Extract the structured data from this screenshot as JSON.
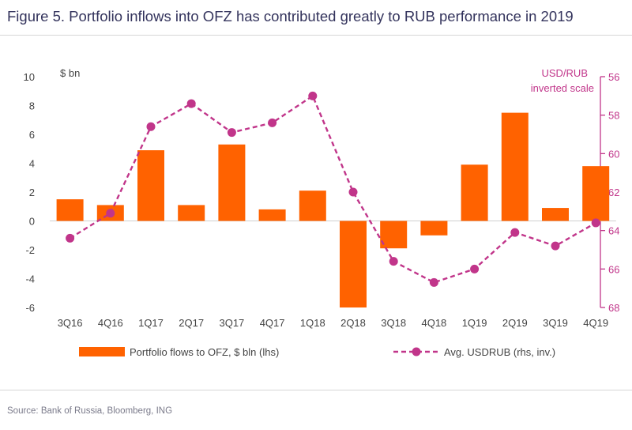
{
  "title": "Figure 5. Portfolio inflows into OFZ has contributed greatly to RUB performance in 2019",
  "source": "Source: Bank of Russia, Bloomberg, ING",
  "colors": {
    "bar": "#ff6200",
    "line": "#c1358a",
    "axis_left": "#444444",
    "axis_right": "#c1358a",
    "title": "#33335c"
  },
  "chart_data": {
    "type": "bar",
    "categories": [
      "3Q16",
      "4Q16",
      "1Q17",
      "2Q17",
      "3Q17",
      "4Q17",
      "1Q18",
      "2Q18",
      "3Q18",
      "4Q18",
      "1Q19",
      "2Q19",
      "3Q19",
      "4Q19"
    ],
    "series": [
      {
        "name": "Portfolio flows to OFZ, $ bln (lhs)",
        "type": "bar",
        "axis": "left",
        "values": [
          1.5,
          1.1,
          4.9,
          1.1,
          5.3,
          0.8,
          2.1,
          -6.0,
          -1.9,
          -1.0,
          3.9,
          7.5,
          0.9,
          3.8
        ]
      },
      {
        "name": "Avg. USDRUB (rhs, inv.)",
        "type": "line",
        "style": "dashed",
        "marker": "circle",
        "axis": "right",
        "values": [
          64.4,
          63.1,
          58.6,
          57.4,
          58.9,
          58.4,
          57.0,
          62.0,
          65.6,
          66.7,
          66.0,
          64.1,
          64.8,
          63.6
        ]
      }
    ],
    "left_axis": {
      "label": "$ bn",
      "ylim": [
        -6,
        10
      ],
      "ticks": [
        10,
        8,
        6,
        4,
        2,
        0,
        -2,
        -4,
        -6
      ]
    },
    "right_axis": {
      "label_line1": "USD/RUB",
      "label_line2": "inverted scale",
      "ylim": [
        56,
        68
      ],
      "inverted": true,
      "ticks": [
        56,
        58,
        60,
        62,
        64,
        66,
        68
      ]
    },
    "legend_position": "bottom",
    "grid": false
  }
}
